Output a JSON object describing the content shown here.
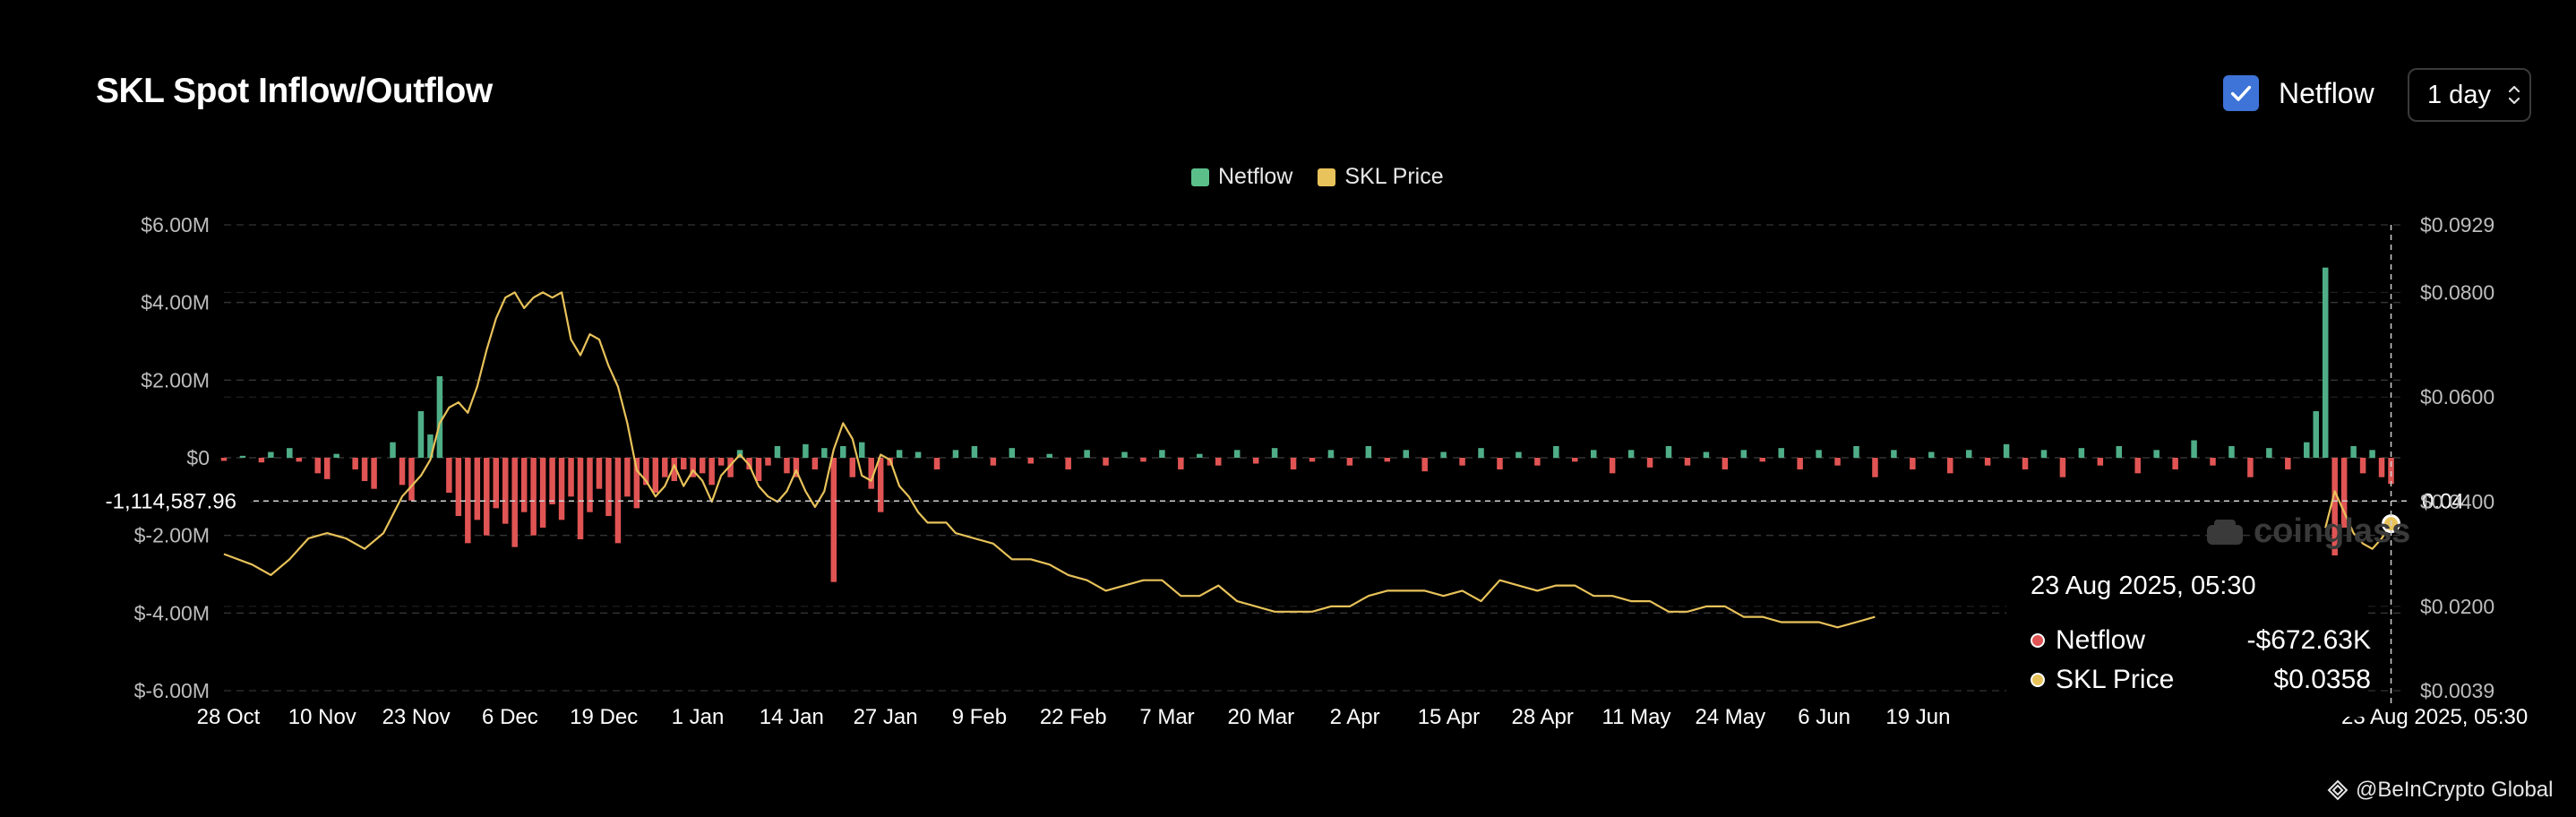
{
  "header": {
    "title": "SKL Spot Inflow/Outflow",
    "toggle_label": "Netflow",
    "interval": "1 day"
  },
  "chart_data": {
    "type": "bar+line",
    "title": "SKL Spot Inflow/Outflow",
    "legend": [
      {
        "name": "Netflow",
        "color": "#5bbf8a"
      },
      {
        "name": "SKL Price",
        "color": "#e8c25a"
      }
    ],
    "colors": {
      "positive": "#4fae87",
      "negative": "#e05454",
      "price": "#e8c25a",
      "grid": "#333333"
    },
    "x_ticks": [
      "28 Oct",
      "10 Nov",
      "23 Nov",
      "6 Dec",
      "19 Dec",
      "1 Jan",
      "14 Jan",
      "27 Jan",
      "9 Feb",
      "22 Feb",
      "7 Mar",
      "20 Mar",
      "2 Apr",
      "15 Apr",
      "28 Apr",
      "11 May",
      "24 May",
      "6 Jun",
      "19 Jun"
    ],
    "x_last_label": "23 Aug 2025, 05:30",
    "y_left": {
      "ticks": [
        "$6.00M",
        "$4.00M",
        "$2.00M",
        "$0",
        "$-2.00M",
        "$-4.00M",
        "$-6.00M"
      ],
      "values": [
        6,
        4,
        2,
        0,
        -2,
        -4,
        -6
      ],
      "range": [
        -6,
        6
      ],
      "unit": "$M"
    },
    "y_right": {
      "ticks": [
        "$0.0929",
        "$0.0800",
        "$0.0600",
        "$0.0400",
        "$0.0200",
        "$0.0039"
      ],
      "values": [
        0.0929,
        0.08,
        0.06,
        0.04,
        0.02,
        0.0039
      ],
      "range": [
        0.0039,
        0.0929
      ]
    },
    "crosshair": {
      "left_label": "-1,114,587.96",
      "left_value_m": -1.11458796,
      "right_label": "0.04"
    },
    "price_series": [
      [
        0,
        0.03
      ],
      [
        3,
        0.028
      ],
      [
        5,
        0.026
      ],
      [
        7,
        0.029
      ],
      [
        9,
        0.033
      ],
      [
        11,
        0.034
      ],
      [
        13,
        0.033
      ],
      [
        15,
        0.031
      ],
      [
        17,
        0.034
      ],
      [
        19,
        0.041
      ],
      [
        21,
        0.045
      ],
      [
        22,
        0.048
      ],
      [
        23,
        0.055
      ],
      [
        24,
        0.058
      ],
      [
        25,
        0.059
      ],
      [
        26,
        0.057
      ],
      [
        27,
        0.062
      ],
      [
        28,
        0.069
      ],
      [
        29,
        0.075
      ],
      [
        30,
        0.079
      ],
      [
        31,
        0.08
      ],
      [
        32,
        0.077
      ],
      [
        33,
        0.079
      ],
      [
        34,
        0.08
      ],
      [
        35,
        0.079
      ],
      [
        36,
        0.08
      ],
      [
        37,
        0.071
      ],
      [
        38,
        0.068
      ],
      [
        39,
        0.072
      ],
      [
        40,
        0.071
      ],
      [
        41,
        0.066
      ],
      [
        42,
        0.062
      ],
      [
        43,
        0.055
      ],
      [
        44,
        0.046
      ],
      [
        45,
        0.044
      ],
      [
        46,
        0.041
      ],
      [
        47,
        0.043
      ],
      [
        48,
        0.047
      ],
      [
        49,
        0.043
      ],
      [
        50,
        0.046
      ],
      [
        51,
        0.044
      ],
      [
        52,
        0.04
      ],
      [
        53,
        0.045
      ],
      [
        54,
        0.047
      ],
      [
        55,
        0.049
      ],
      [
        56,
        0.047
      ],
      [
        57,
        0.043
      ],
      [
        58,
        0.041
      ],
      [
        59,
        0.04
      ],
      [
        60,
        0.042
      ],
      [
        61,
        0.046
      ],
      [
        62,
        0.042
      ],
      [
        63,
        0.039
      ],
      [
        64,
        0.042
      ],
      [
        65,
        0.05
      ],
      [
        66,
        0.055
      ],
      [
        67,
        0.052
      ],
      [
        68,
        0.045
      ],
      [
        69,
        0.044
      ],
      [
        70,
        0.049
      ],
      [
        71,
        0.048
      ],
      [
        72,
        0.043
      ],
      [
        73,
        0.041
      ],
      [
        74,
        0.038
      ],
      [
        75,
        0.036
      ],
      [
        76,
        0.036
      ],
      [
        77,
        0.036
      ],
      [
        78,
        0.034
      ],
      [
        80,
        0.033
      ],
      [
        82,
        0.032
      ],
      [
        84,
        0.029
      ],
      [
        86,
        0.029
      ],
      [
        88,
        0.028
      ],
      [
        90,
        0.026
      ],
      [
        92,
        0.025
      ],
      [
        94,
        0.023
      ],
      [
        96,
        0.024
      ],
      [
        98,
        0.025
      ],
      [
        100,
        0.025
      ],
      [
        102,
        0.022
      ],
      [
        104,
        0.022
      ],
      [
        106,
        0.024
      ],
      [
        108,
        0.021
      ],
      [
        110,
        0.02
      ],
      [
        112,
        0.019
      ],
      [
        114,
        0.019
      ],
      [
        116,
        0.019
      ],
      [
        118,
        0.02
      ],
      [
        120,
        0.02
      ],
      [
        122,
        0.022
      ],
      [
        124,
        0.023
      ],
      [
        126,
        0.023
      ],
      [
        128,
        0.023
      ],
      [
        130,
        0.022
      ],
      [
        132,
        0.023
      ],
      [
        134,
        0.021
      ],
      [
        136,
        0.025
      ],
      [
        138,
        0.024
      ],
      [
        140,
        0.023
      ],
      [
        142,
        0.024
      ],
      [
        144,
        0.024
      ],
      [
        146,
        0.022
      ],
      [
        148,
        0.022
      ],
      [
        150,
        0.021
      ],
      [
        152,
        0.021
      ],
      [
        154,
        0.019
      ],
      [
        156,
        0.019
      ],
      [
        158,
        0.02
      ],
      [
        160,
        0.02
      ],
      [
        162,
        0.018
      ],
      [
        164,
        0.018
      ],
      [
        166,
        0.017
      ],
      [
        168,
        0.017
      ],
      [
        170,
        0.017
      ],
      [
        172,
        0.016
      ],
      [
        174,
        0.017
      ],
      [
        176,
        0.018
      ],
      [
        224,
        0.035
      ],
      [
        225,
        0.042
      ],
      [
        226,
        0.038
      ],
      [
        227,
        0.034
      ],
      [
        228,
        0.032
      ],
      [
        229,
        0.031
      ],
      [
        230,
        0.033
      ],
      [
        231,
        0.0358
      ]
    ],
    "netflow_series": [
      [
        0,
        -0.08
      ],
      [
        2,
        0.05
      ],
      [
        4,
        -0.12
      ],
      [
        5,
        0.15
      ],
      [
        7,
        0.25
      ],
      [
        8,
        -0.1
      ],
      [
        10,
        -0.4
      ],
      [
        11,
        -0.55
      ],
      [
        12,
        0.1
      ],
      [
        14,
        -0.3
      ],
      [
        15,
        -0.6
      ],
      [
        16,
        -0.8
      ],
      [
        18,
        0.4
      ],
      [
        19,
        -0.7
      ],
      [
        20,
        -1.1
      ],
      [
        21,
        1.2
      ],
      [
        22,
        0.6
      ],
      [
        23,
        2.1
      ],
      [
        24,
        -0.9
      ],
      [
        25,
        -1.5
      ],
      [
        26,
        -2.2
      ],
      [
        27,
        -1.6
      ],
      [
        28,
        -2.0
      ],
      [
        29,
        -1.3
      ],
      [
        30,
        -1.7
      ],
      [
        31,
        -2.3
      ],
      [
        32,
        -1.4
      ],
      [
        33,
        -2.0
      ],
      [
        34,
        -1.8
      ],
      [
        35,
        -1.2
      ],
      [
        36,
        -1.6
      ],
      [
        37,
        -1.0
      ],
      [
        38,
        -2.1
      ],
      [
        39,
        -1.4
      ],
      [
        40,
        -0.8
      ],
      [
        41,
        -1.5
      ],
      [
        42,
        -2.2
      ],
      [
        43,
        -1.0
      ],
      [
        44,
        -1.3
      ],
      [
        45,
        -0.7
      ],
      [
        46,
        -0.9
      ],
      [
        47,
        -0.5
      ],
      [
        48,
        -0.6
      ],
      [
        49,
        -0.3
      ],
      [
        50,
        -0.5
      ],
      [
        51,
        -0.4
      ],
      [
        52,
        -0.7
      ],
      [
        53,
        -0.2
      ],
      [
        54,
        -0.5
      ],
      [
        55,
        0.2
      ],
      [
        56,
        -0.3
      ],
      [
        57,
        -0.6
      ],
      [
        58,
        -0.2
      ],
      [
        59,
        0.3
      ],
      [
        60,
        -0.4
      ],
      [
        61,
        -0.5
      ],
      [
        62,
        0.35
      ],
      [
        63,
        -0.3
      ],
      [
        64,
        0.25
      ],
      [
        65,
        -3.2
      ],
      [
        66,
        0.3
      ],
      [
        67,
        -0.5
      ],
      [
        68,
        0.4
      ],
      [
        69,
        -0.8
      ],
      [
        70,
        -1.4
      ],
      [
        71,
        -0.2
      ],
      [
        72,
        0.2
      ],
      [
        74,
        0.15
      ],
      [
        76,
        -0.3
      ],
      [
        78,
        0.2
      ],
      [
        80,
        0.3
      ],
      [
        82,
        -0.2
      ],
      [
        84,
        0.25
      ],
      [
        86,
        -0.15
      ],
      [
        88,
        0.1
      ],
      [
        90,
        -0.3
      ],
      [
        92,
        0.2
      ],
      [
        94,
        -0.2
      ],
      [
        96,
        0.15
      ],
      [
        98,
        -0.1
      ],
      [
        100,
        0.2
      ],
      [
        102,
        -0.3
      ],
      [
        104,
        0.1
      ],
      [
        106,
        -0.2
      ],
      [
        108,
        0.2
      ],
      [
        110,
        -0.15
      ],
      [
        112,
        0.25
      ],
      [
        114,
        -0.3
      ],
      [
        116,
        -0.1
      ],
      [
        118,
        0.2
      ],
      [
        120,
        -0.2
      ],
      [
        122,
        0.3
      ],
      [
        124,
        -0.1
      ],
      [
        126,
        0.2
      ],
      [
        128,
        -0.35
      ],
      [
        130,
        0.15
      ],
      [
        132,
        -0.2
      ],
      [
        134,
        0.25
      ],
      [
        136,
        -0.3
      ],
      [
        138,
        0.15
      ],
      [
        140,
        -0.2
      ],
      [
        142,
        0.3
      ],
      [
        144,
        -0.1
      ],
      [
        146,
        0.2
      ],
      [
        148,
        -0.4
      ],
      [
        150,
        0.2
      ],
      [
        152,
        -0.25
      ],
      [
        154,
        0.3
      ],
      [
        156,
        -0.2
      ],
      [
        158,
        0.15
      ],
      [
        160,
        -0.3
      ],
      [
        162,
        0.2
      ],
      [
        164,
        -0.1
      ],
      [
        166,
        0.25
      ],
      [
        168,
        -0.3
      ],
      [
        170,
        0.2
      ],
      [
        172,
        -0.2
      ],
      [
        174,
        0.3
      ],
      [
        176,
        -0.5
      ],
      [
        178,
        0.2
      ],
      [
        180,
        -0.3
      ],
      [
        182,
        0.15
      ],
      [
        184,
        -0.4
      ],
      [
        186,
        0.2
      ],
      [
        188,
        -0.2
      ],
      [
        190,
        0.35
      ],
      [
        192,
        -0.3
      ],
      [
        194,
        0.2
      ],
      [
        196,
        -0.5
      ],
      [
        198,
        0.25
      ],
      [
        200,
        -0.2
      ],
      [
        202,
        0.3
      ],
      [
        204,
        -0.4
      ],
      [
        206,
        0.2
      ],
      [
        208,
        -0.3
      ],
      [
        210,
        0.45
      ],
      [
        212,
        -0.2
      ],
      [
        214,
        0.3
      ],
      [
        216,
        -0.5
      ],
      [
        218,
        0.25
      ],
      [
        220,
        -0.3
      ],
      [
        222,
        0.4
      ],
      [
        223,
        1.2
      ],
      [
        224,
        4.9
      ],
      [
        225,
        -4.2
      ],
      [
        226,
        -1.8
      ],
      [
        227,
        0.3
      ],
      [
        228,
        -0.4
      ],
      [
        229,
        0.2
      ],
      [
        230,
        -0.5
      ],
      [
        231,
        -0.67263
      ]
    ]
  },
  "tooltip": {
    "date": "23 Aug 2025, 05:30",
    "rows": [
      {
        "name": "Netflow",
        "value": "-$672.63K",
        "color": "#e05454"
      },
      {
        "name": "SKL Price",
        "value": "$0.0358",
        "color": "#e8c25a"
      }
    ]
  },
  "watermark": "coinglass",
  "credit": "@BeInCrypto Global"
}
